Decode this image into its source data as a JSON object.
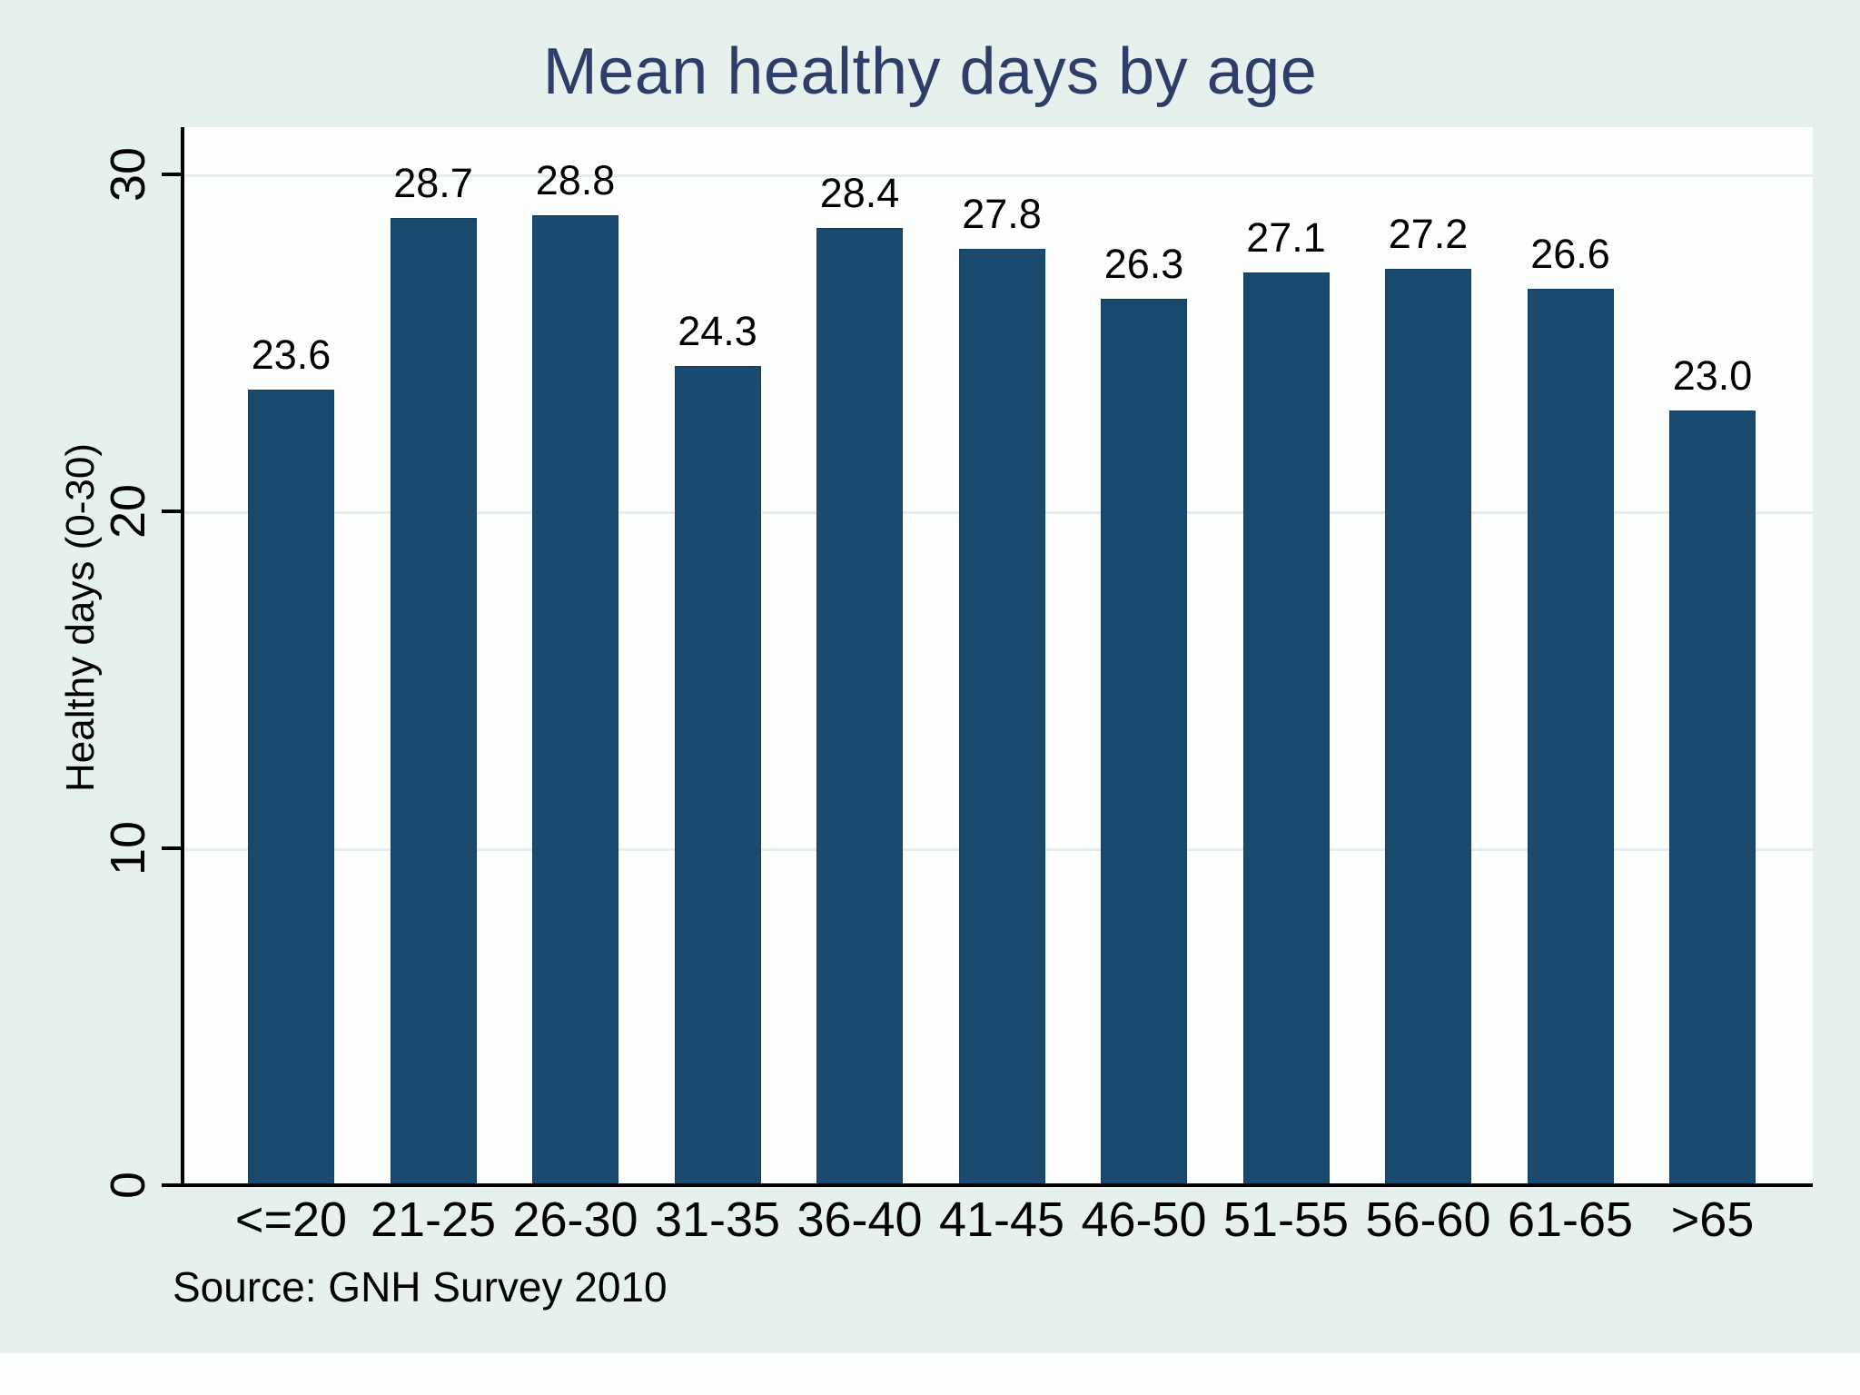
{
  "chart_data": {
    "type": "bar",
    "title": "Mean healthy days by age",
    "ylabel": "Healthy days (0-30)",
    "xlabel": "",
    "source": "Source: GNH Survey 2010",
    "categories": [
      "<=20",
      "21-25",
      "26-30",
      "31-35",
      "36-40",
      "41-45",
      "46-50",
      "51-55",
      "56-60",
      "61-65",
      ">65"
    ],
    "values": [
      23.6,
      28.7,
      28.8,
      24.3,
      28.4,
      27.8,
      26.3,
      27.1,
      27.2,
      26.6,
      23.0
    ],
    "value_label_format": "one-decimal",
    "yticks": [
      0,
      10,
      20,
      30
    ],
    "ylim": [
      0,
      30
    ],
    "grid": true,
    "legend_position": "none",
    "colors": {
      "bar": "#1b4a6f",
      "bar_border": "#143d5f",
      "figure_background": "#e6f1ee",
      "plot_background": "#fdfefe",
      "gridline": "#e7ecee",
      "title_text": "#2e3e68",
      "axis_text": "#000000"
    }
  }
}
